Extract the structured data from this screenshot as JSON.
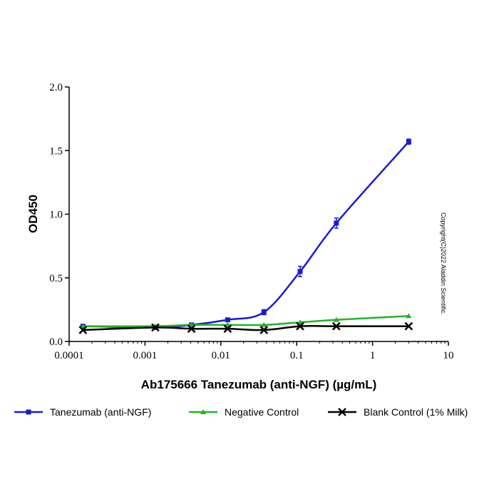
{
  "chart_data": {
    "type": "scatter",
    "xlabel": "Ab175666 Tanezumab (anti-NGF) (µg/mL)",
    "ylabel": "OD450",
    "annotation": "Copyright(C)2022 Aladdin Scientific.",
    "x": [
      0.000152,
      0.00137,
      0.0041,
      0.0123,
      0.037,
      0.111,
      0.333,
      3
    ],
    "xscale": "log",
    "xlim": [
      0.0001,
      10
    ],
    "xticks": [
      0.0001,
      0.001,
      0.01,
      0.1,
      1,
      10
    ],
    "ylim": [
      0,
      2
    ],
    "yticks": [
      {
        "value": 0,
        "label": "0.0"
      },
      {
        "value": 0.5,
        "label": "0.5"
      },
      {
        "value": 1,
        "label": "1.0"
      },
      {
        "value": 1.5,
        "label": "1.5"
      },
      {
        "value": 2,
        "label": "2.0"
      }
    ],
    "legend": "bottom",
    "series": [
      {
        "name": "Tanezumab (anti-NGF)",
        "color": "#1a1ad6",
        "marker": "square",
        "values": [
          0.12,
          0.11,
          0.13,
          0.17,
          0.23,
          0.55,
          0.93,
          1.57
        ],
        "errors": [
          0.01,
          0.01,
          0.01,
          0.01,
          0.02,
          0.04,
          0.04,
          0.02
        ]
      },
      {
        "name": "Negative Control",
        "color": "#22b422",
        "marker": "triangle",
        "values": [
          0.12,
          0.12,
          0.13,
          0.13,
          0.13,
          0.15,
          0.17,
          0.2
        ]
      },
      {
        "name": "Blank Control (1% Milk)",
        "color": "#000000",
        "marker": "x",
        "values": [
          0.09,
          0.11,
          0.1,
          0.1,
          0.09,
          0.12,
          0.12,
          0.12
        ]
      }
    ]
  }
}
